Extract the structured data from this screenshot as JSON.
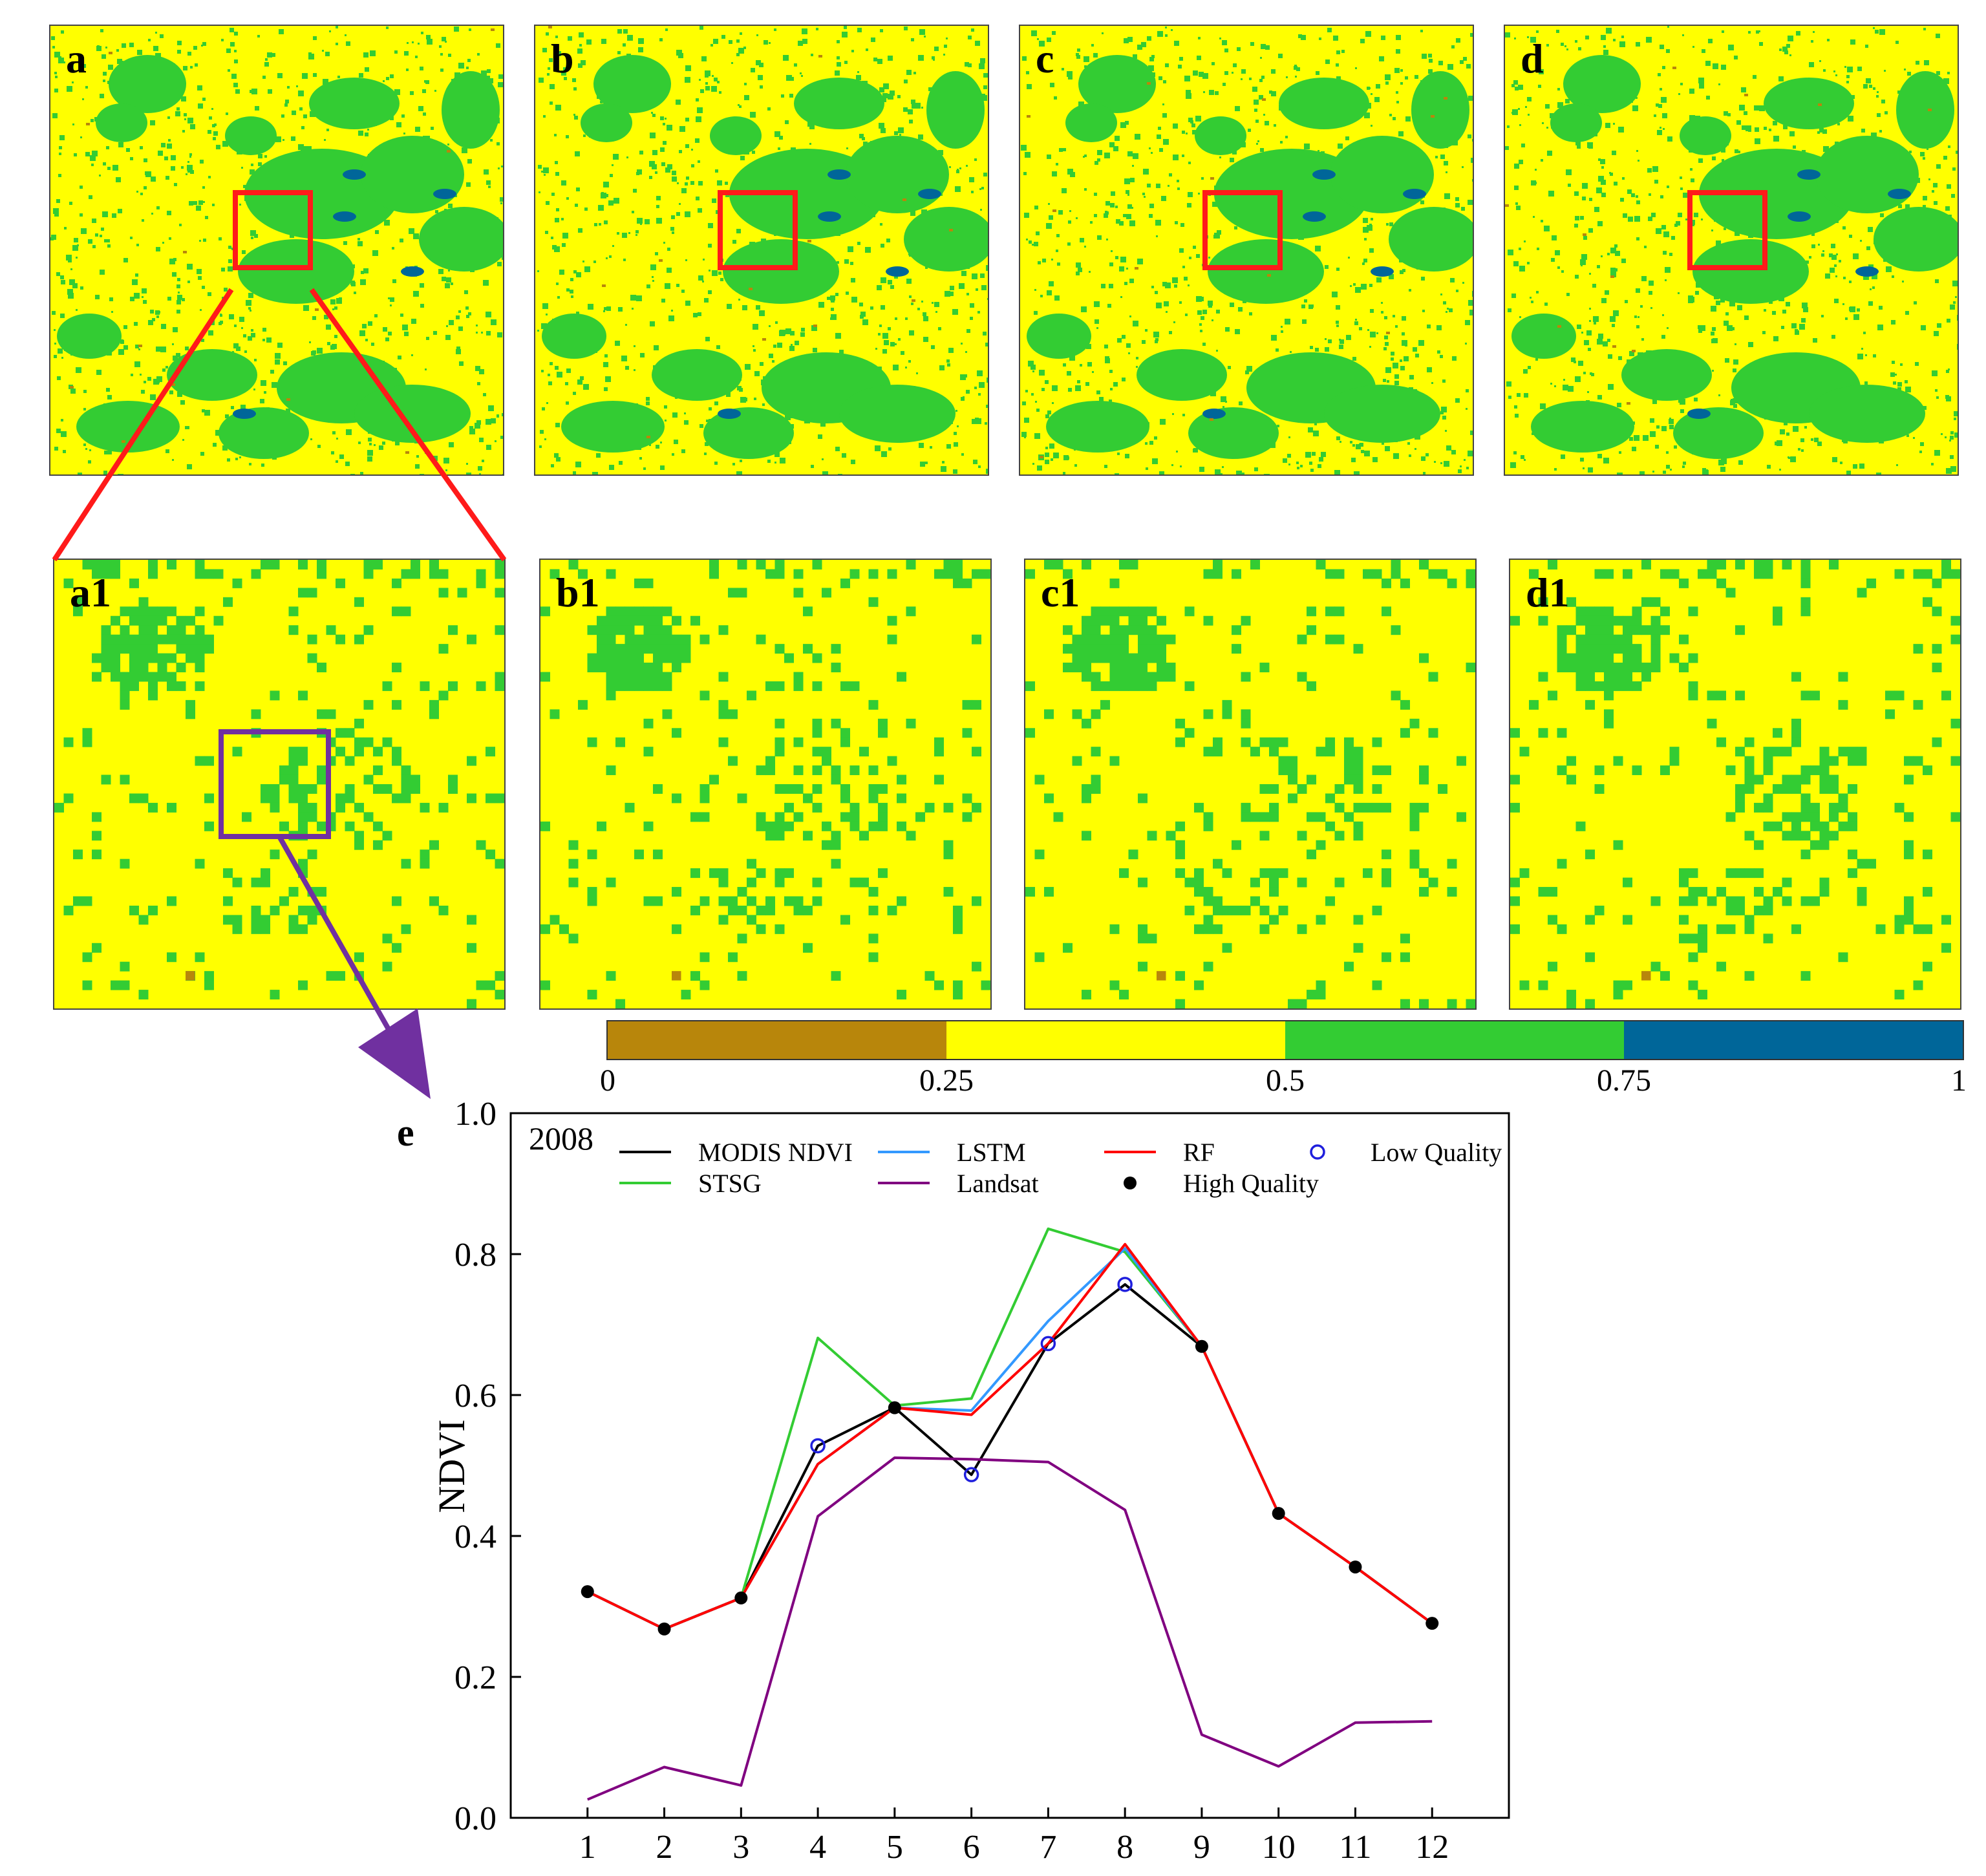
{
  "panels": {
    "top": [
      "a",
      "b",
      "c",
      "d"
    ],
    "zoom": [
      "a1",
      "b1",
      "c1",
      "d1"
    ]
  },
  "colorbar": {
    "colors": [
      "#b8860b",
      "#ffff00",
      "#33cc33",
      "#006699"
    ],
    "ticks": [
      "0",
      "0.25",
      "0.5",
      "0.75",
      "1"
    ]
  },
  "chart_letter": "e",
  "chart_data": {
    "type": "line",
    "title": "2008",
    "xlabel": "",
    "ylabel": "NDVI",
    "x": [
      1,
      2,
      3,
      4,
      5,
      6,
      7,
      8,
      9,
      10,
      11,
      12
    ],
    "x_tick_labels": [
      "1",
      "2",
      "3",
      "4",
      "5",
      "6",
      "7",
      "8",
      "9",
      "10",
      "11",
      "12"
    ],
    "ylim": [
      0.0,
      1.0
    ],
    "y_ticks": [
      0.0,
      0.2,
      0.4,
      0.6,
      0.8,
      1.0
    ],
    "y_tick_labels": [
      "0.0",
      "0.2",
      "0.4",
      "0.6",
      "0.8",
      "1.0"
    ],
    "legend_position": "top",
    "series": [
      {
        "name": "MODIS NDVI",
        "color": "#000000",
        "values": [
          0.321,
          0.268,
          0.312,
          0.528,
          0.582,
          0.487,
          0.673,
          0.757,
          0.669,
          0.432,
          0.356,
          0.276
        ]
      },
      {
        "name": "STSG",
        "color": "#33cc33",
        "values": [
          0.321,
          0.268,
          0.312,
          0.681,
          0.585,
          0.595,
          0.836,
          0.803,
          0.669,
          0.432,
          0.356,
          0.276
        ]
      },
      {
        "name": "LSTM",
        "color": "#3399ff",
        "values": [
          0.321,
          0.268,
          0.312,
          0.502,
          0.582,
          0.578,
          0.705,
          0.808,
          0.669,
          0.432,
          0.356,
          0.276
        ]
      },
      {
        "name": "Landsat",
        "color": "#800080",
        "values": [
          0.026,
          0.072,
          0.046,
          0.428,
          0.511,
          0.509,
          0.505,
          0.437,
          0.118,
          0.073,
          0.135,
          0.137
        ]
      },
      {
        "name": "RF",
        "color": "#ff0000",
        "values": [
          0.321,
          0.268,
          0.312,
          0.502,
          0.582,
          0.572,
          0.673,
          0.814,
          0.669,
          0.432,
          0.356,
          0.276
        ]
      }
    ],
    "markers": [
      {
        "name": "High Quality",
        "style": "filled-black",
        "points": [
          [
            1,
            0.321
          ],
          [
            2,
            0.268
          ],
          [
            3,
            0.312
          ],
          [
            5,
            0.582
          ],
          [
            9,
            0.669
          ],
          [
            10,
            0.432
          ],
          [
            11,
            0.356
          ],
          [
            12,
            0.276
          ]
        ]
      },
      {
        "name": "Low Quality",
        "style": "open-blue",
        "points": [
          [
            4,
            0.528
          ],
          [
            6,
            0.487
          ],
          [
            7,
            0.673
          ],
          [
            8,
            0.757
          ]
        ]
      }
    ],
    "legend_order": [
      "MODIS NDVI",
      "LSTM",
      "RF",
      "Low Quality",
      "STSG",
      "Landsat",
      "High Quality"
    ]
  }
}
